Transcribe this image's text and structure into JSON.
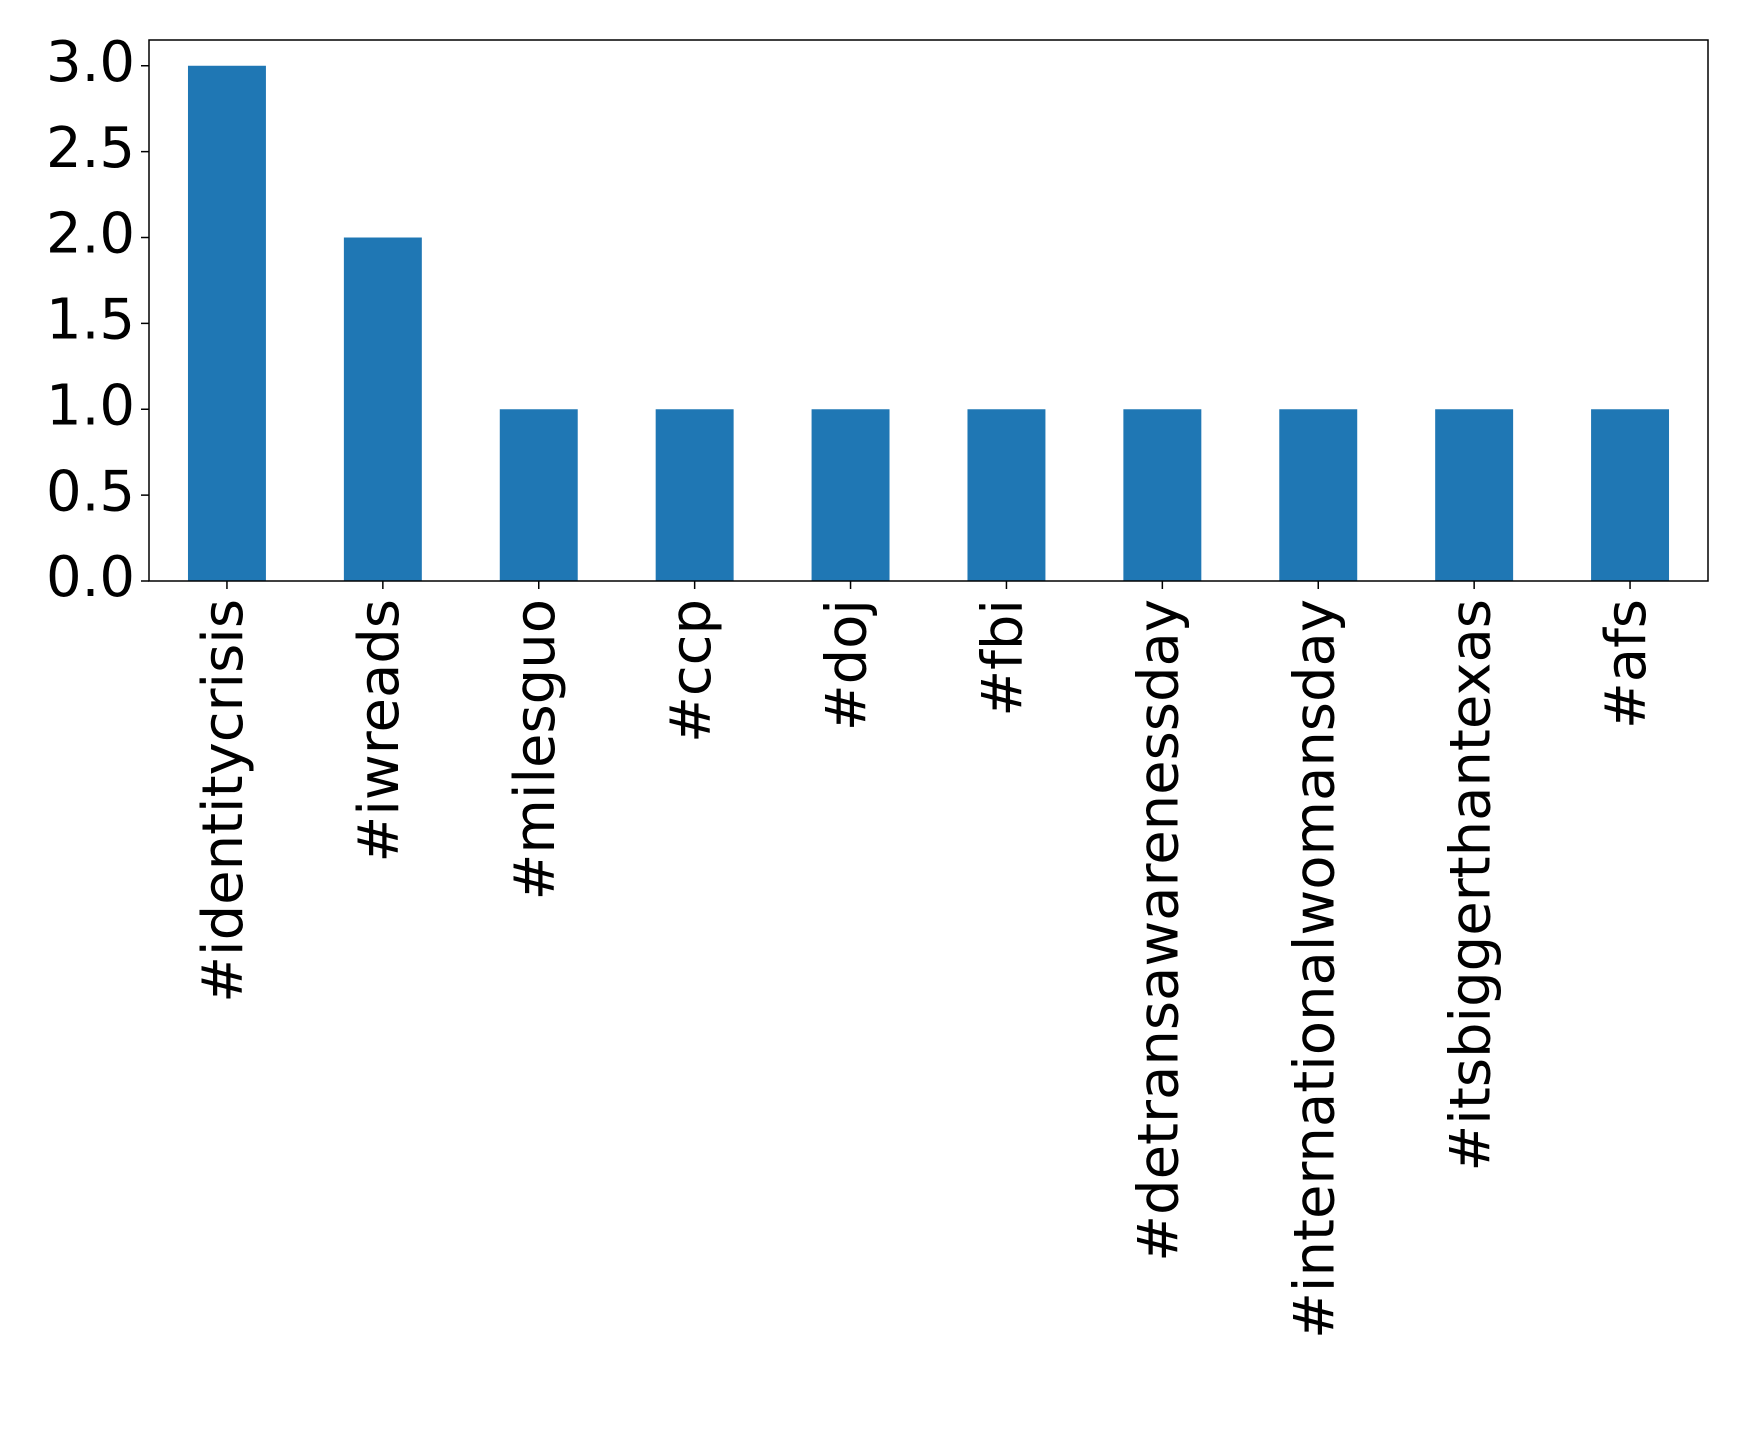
{
  "chart_data": {
    "type": "bar",
    "categories": [
      "#identitycrisis",
      "#iwreads",
      "#milesguo",
      "#ccp",
      "#doj",
      "#fbi",
      "#detransawarenessday",
      "#internationalwomansday",
      "#itsbiggerthantexas",
      "#afs"
    ],
    "values": [
      3,
      2,
      1,
      1,
      1,
      1,
      1,
      1,
      1,
      1
    ],
    "color": "#1f77b4",
    "ylim": [
      0,
      3.15
    ],
    "yticks": [
      {
        "value": 0,
        "label": "0.0"
      },
      0.5,
      {
        "value": 1,
        "label": "1.0"
      },
      1.5,
      {
        "value": 2,
        "label": "2.0"
      },
      2.5,
      {
        "value": 3,
        "label": "3.0"
      }
    ],
    "grid": false
  }
}
